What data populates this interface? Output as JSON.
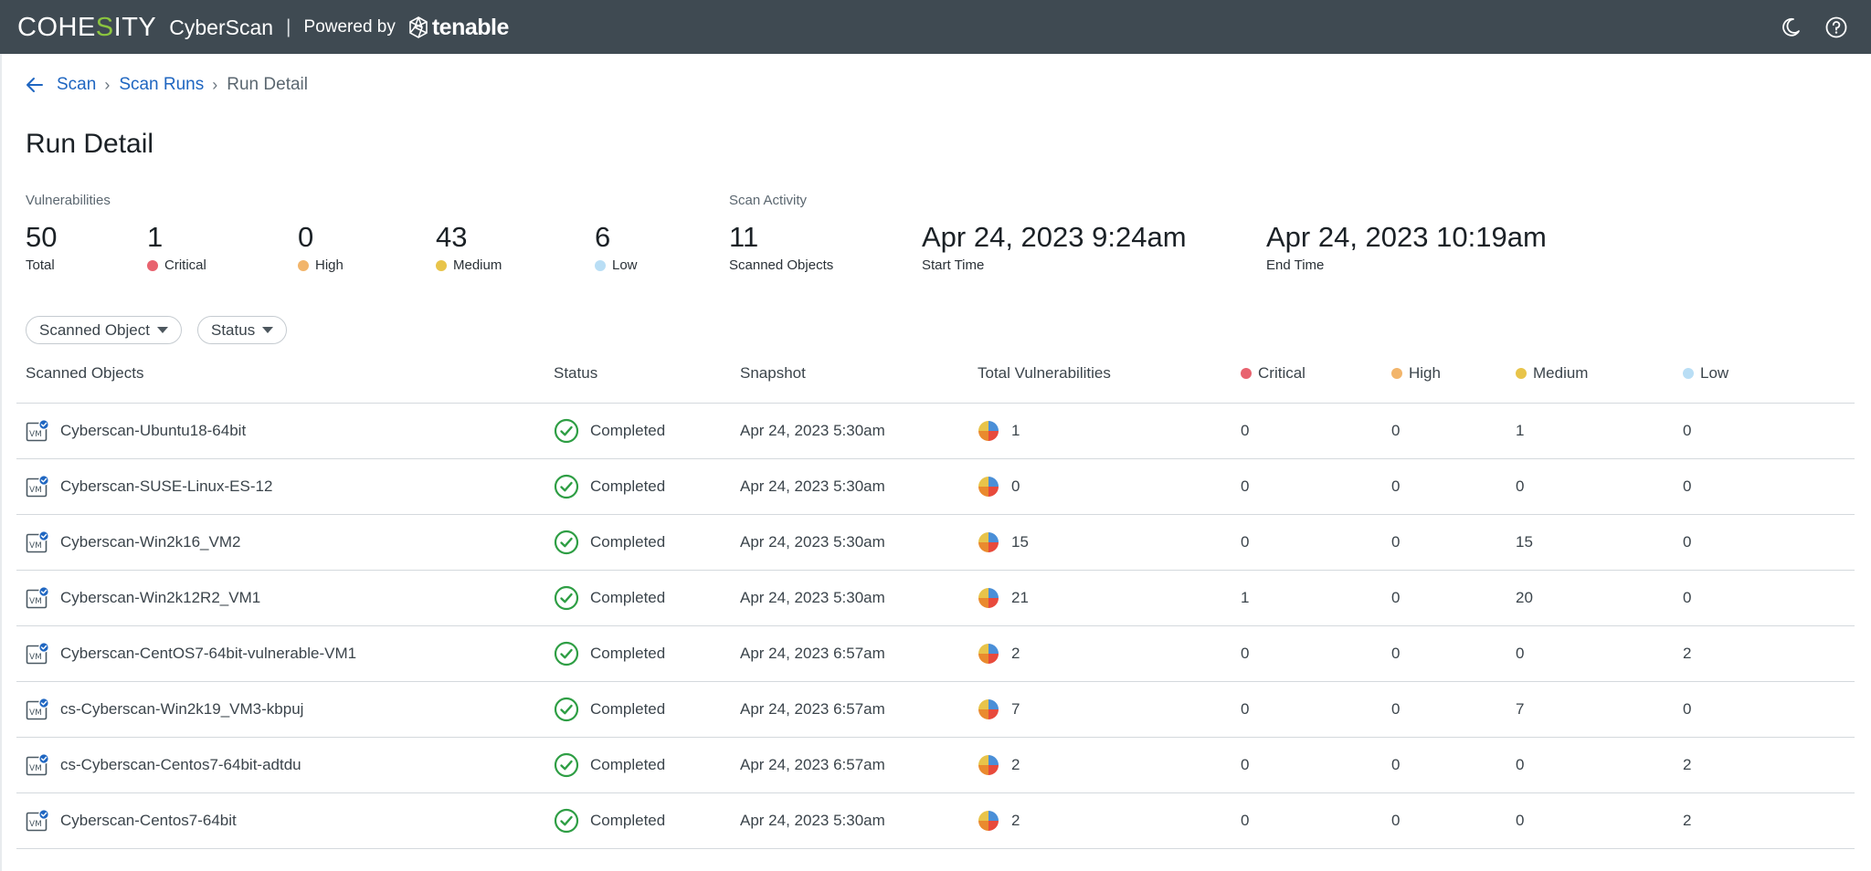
{
  "header": {
    "logo_left": "COHE",
    "logo_accent": "S",
    "logo_right": "ITY",
    "product": "CyberScan",
    "separator": "|",
    "powered_by": "Powered by",
    "partner": "tenable",
    "icons": [
      "moon-icon",
      "help-icon"
    ]
  },
  "breadcrumb": {
    "items": [
      "Scan",
      "Scan Runs"
    ],
    "current": "Run Detail",
    "separator": "›"
  },
  "page_title": "Run Detail",
  "vulnerabilities": {
    "label": "Vulnerabilities",
    "total": {
      "value": "50",
      "label": "Total"
    },
    "critical": {
      "value": "1",
      "label": "Critical"
    },
    "high": {
      "value": "0",
      "label": "High"
    },
    "medium": {
      "value": "43",
      "label": "Medium"
    },
    "low": {
      "value": "6",
      "label": "Low"
    }
  },
  "scan_activity": {
    "label": "Scan Activity",
    "scanned_objects": {
      "value": "11",
      "label": "Scanned Objects"
    },
    "start_time": {
      "value": "Apr 24, 2023 9:24am",
      "label": "Start Time"
    },
    "end_time": {
      "value": "Apr 24, 2023 10:19am",
      "label": "End Time"
    }
  },
  "filters": [
    "Scanned Object",
    "Status"
  ],
  "colors": {
    "critical": "#e8636f",
    "high": "#f2b56b",
    "medium": "#e8c44a",
    "low": "#b9def5",
    "completed": "#2e9e44",
    "link": "#1f66c1",
    "topbar": "#3f4a52"
  },
  "table": {
    "columns": [
      "Scanned Objects",
      "Status",
      "Snapshot",
      "Total Vulnerabilities",
      "Critical",
      "High",
      "Medium",
      "Low"
    ],
    "rows": [
      {
        "name": "Cyberscan-Ubuntu18-64bit",
        "status": "Completed",
        "snapshot": "Apr 24, 2023 5:30am",
        "total": "1",
        "critical": "0",
        "high": "0",
        "medium": "1",
        "low": "0"
      },
      {
        "name": "Cyberscan-SUSE-Linux-ES-12",
        "status": "Completed",
        "snapshot": "Apr 24, 2023 5:30am",
        "total": "0",
        "critical": "0",
        "high": "0",
        "medium": "0",
        "low": "0"
      },
      {
        "name": "Cyberscan-Win2k16_VM2",
        "status": "Completed",
        "snapshot": "Apr 24, 2023 5:30am",
        "total": "15",
        "critical": "0",
        "high": "0",
        "medium": "15",
        "low": "0"
      },
      {
        "name": "Cyberscan-Win2k12R2_VM1",
        "status": "Completed",
        "snapshot": "Apr 24, 2023 5:30am",
        "total": "21",
        "critical": "1",
        "high": "0",
        "medium": "20",
        "low": "0"
      },
      {
        "name": "Cyberscan-CentOS7-64bit-vulnerable-VM1",
        "status": "Completed",
        "snapshot": "Apr 24, 2023 6:57am",
        "total": "2",
        "critical": "0",
        "high": "0",
        "medium": "0",
        "low": "2"
      },
      {
        "name": "cs-Cyberscan-Win2k19_VM3-kbpuj",
        "status": "Completed",
        "snapshot": "Apr 24, 2023 6:57am",
        "total": "7",
        "critical": "0",
        "high": "0",
        "medium": "7",
        "low": "0"
      },
      {
        "name": "cs-Cyberscan-Centos7-64bit-adtdu",
        "status": "Completed",
        "snapshot": "Apr 24, 2023 6:57am",
        "total": "2",
        "critical": "0",
        "high": "0",
        "medium": "0",
        "low": "2"
      },
      {
        "name": "Cyberscan-Centos7-64bit",
        "status": "Completed",
        "snapshot": "Apr 24, 2023 5:30am",
        "total": "2",
        "critical": "0",
        "high": "0",
        "medium": "0",
        "low": "2"
      }
    ]
  }
}
